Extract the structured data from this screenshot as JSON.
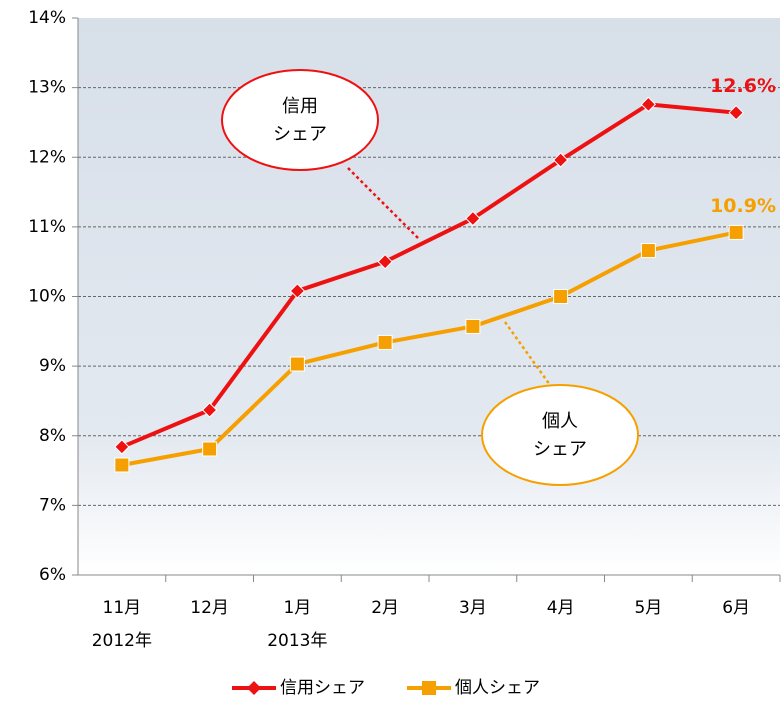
{
  "chart_data": {
    "type": "line",
    "categories": [
      "11月",
      "12月",
      "1月",
      "2月",
      "3月",
      "4月",
      "5月",
      "6月"
    ],
    "year_labels": [
      {
        "category": 0,
        "label": "2012年"
      },
      {
        "category": 2,
        "label": "2013年"
      }
    ],
    "series": [
      {
        "name": "信用シェア",
        "color": "#ee1111",
        "marker": "diamond",
        "values": [
          7.84,
          8.37,
          10.08,
          10.5,
          11.12,
          11.96,
          12.76,
          12.64
        ],
        "value_labels": [
          null,
          null,
          null,
          null,
          null,
          null,
          null,
          "12.6%"
        ],
        "callout": [
          "信用",
          "シェア"
        ]
      },
      {
        "name": "個人シェア",
        "color": "#f5a000",
        "marker": "square",
        "values": [
          7.58,
          7.81,
          9.03,
          9.34,
          9.57,
          10.0,
          10.66,
          10.92
        ],
        "value_labels": [
          null,
          null,
          null,
          null,
          null,
          null,
          null,
          "10.9%"
        ],
        "callout": [
          "個人",
          "シェア"
        ]
      }
    ],
    "ylim": [
      6,
      14
    ],
    "yticks": [
      {
        "value": 6,
        "label": "6%"
      },
      {
        "value": 7,
        "label": "7%"
      },
      {
        "value": 8,
        "label": "8%"
      },
      {
        "value": 9,
        "label": "9%"
      },
      {
        "value": 10,
        "label": "10%"
      },
      {
        "value": 11,
        "label": "11%"
      },
      {
        "value": 12,
        "label": "12%"
      },
      {
        "value": 13,
        "label": "13%"
      },
      {
        "value": 14,
        "label": "14%"
      }
    ],
    "grid": true,
    "legend": "bottom"
  }
}
